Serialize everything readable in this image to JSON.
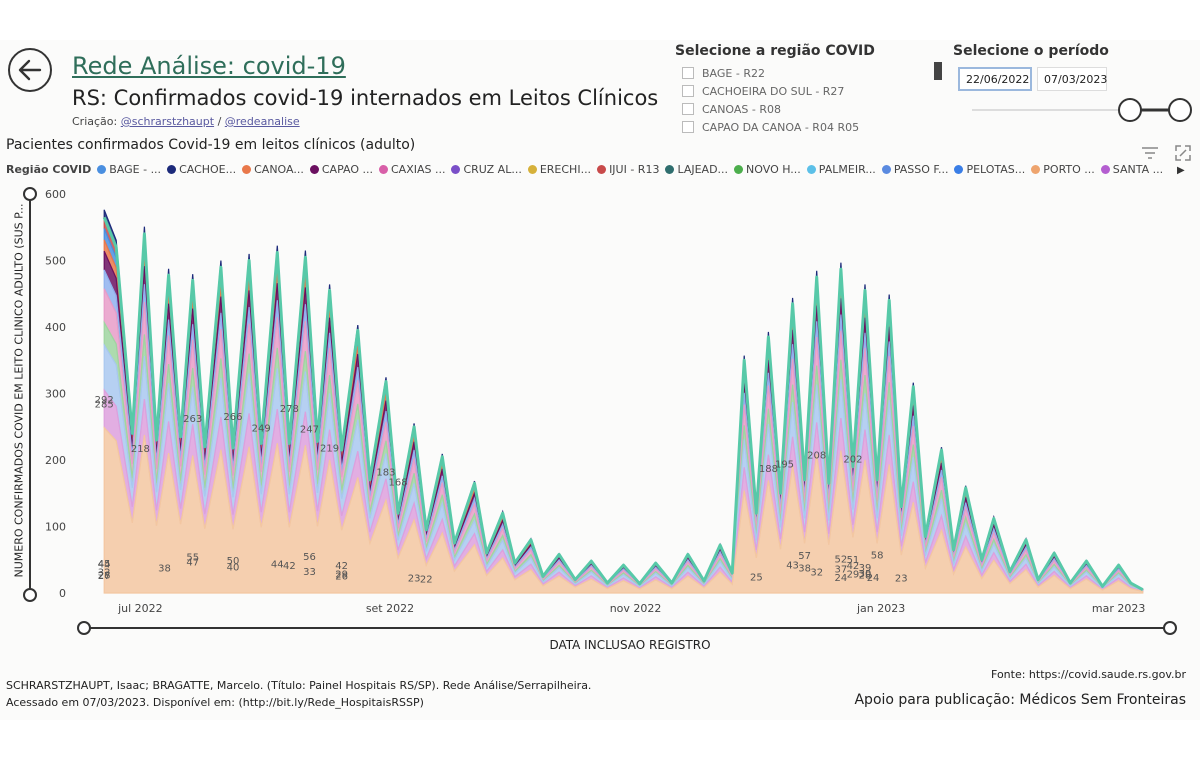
{
  "header": {
    "title": "Rede Análise: covid-19",
    "subtitle": "RS: Confirmados covid-19 internados em Leitos Clínicos",
    "credits_prefix": "Criação: ",
    "credit_1": "@schrarstzhaupt",
    "credits_sep": " / ",
    "credit_2": "@redeanalise"
  },
  "region_filter": {
    "title": "Selecione a região COVID",
    "items": [
      "BAGE - R22",
      "CACHOEIRA DO SUL - R27",
      "CANOAS - R08",
      "CAPAO DA CANOA - R04 R05"
    ]
  },
  "period_filter": {
    "title": "Selecione o período",
    "start": "22/06/2022",
    "end": "07/03/2023"
  },
  "colors": {
    "total_line": "#57c9a8",
    "accent_title": "#2f6e5a"
  },
  "chart_data": {
    "type": "area",
    "title": "Pacientes confirmados Covid-19 em leitos clínicos (adulto)",
    "xlabel": "DATA INCLUSAO REGISTRO",
    "ylabel": "NUMERO CONFIRMADOS COVID EM LEITO CLINICO ADULTO (SUS P...",
    "ylim": [
      0,
      600
    ],
    "yticks": [
      0,
      100,
      200,
      300,
      400,
      500,
      600
    ],
    "xticks": [
      {
        "label": "jul 2022",
        "date": "2022-07-01"
      },
      {
        "label": "set 2022",
        "date": "2022-09-01"
      },
      {
        "label": "nov 2022",
        "date": "2022-11-01"
      },
      {
        "label": "jan 2023",
        "date": "2023-01-01"
      },
      {
        "label": "mar 2023",
        "date": "2023-03-01"
      }
    ],
    "legend_title": "Região COVID",
    "legend": [
      {
        "name": "BAGE - ...",
        "color": "#4a8fe0"
      },
      {
        "name": "CACHOE...",
        "color": "#1c2a7a"
      },
      {
        "name": "CANOA...",
        "color": "#e9784a"
      },
      {
        "name": "CAPAO ...",
        "color": "#6b1060"
      },
      {
        "name": "CAXIAS ...",
        "color": "#d85fa8"
      },
      {
        "name": "CRUZ AL...",
        "color": "#7a4fc8"
      },
      {
        "name": "ERECHI...",
        "color": "#d6b13a"
      },
      {
        "name": "IJUI - R13",
        "color": "#c84a4a"
      },
      {
        "name": "LAJEAD...",
        "color": "#2f6e6e"
      },
      {
        "name": "NOVO H...",
        "color": "#4cae4c"
      },
      {
        "name": "PALMEIR...",
        "color": "#5cc0e8"
      },
      {
        "name": "PASSO F...",
        "color": "#5a8ae0"
      },
      {
        "name": "PELOTAS...",
        "color": "#3a7ee6"
      },
      {
        "name": "PORTO ...",
        "color": "#eea46e"
      },
      {
        "name": "SANTA ...",
        "color": "#b45ed0"
      }
    ],
    "legend_more": "▶",
    "total_series": {
      "name": "total",
      "points": [
        [
          "2022-06-22",
          565
        ],
        [
          "2022-06-25",
          520
        ],
        [
          "2022-06-29",
          240
        ],
        [
          "2022-07-02",
          540
        ],
        [
          "2022-07-05",
          230
        ],
        [
          "2022-07-08",
          478
        ],
        [
          "2022-07-11",
          235
        ],
        [
          "2022-07-14",
          470
        ],
        [
          "2022-07-17",
          220
        ],
        [
          "2022-07-21",
          490
        ],
        [
          "2022-07-24",
          218
        ],
        [
          "2022-07-28",
          500
        ],
        [
          "2022-07-31",
          225
        ],
        [
          "2022-08-04",
          512
        ],
        [
          "2022-08-07",
          225
        ],
        [
          "2022-08-11",
          505
        ],
        [
          "2022-08-14",
          228
        ],
        [
          "2022-08-17",
          455
        ],
        [
          "2022-08-20",
          215
        ],
        [
          "2022-08-24",
          395
        ],
        [
          "2022-08-27",
          170
        ],
        [
          "2022-08-31",
          318
        ],
        [
          "2022-09-03",
          120
        ],
        [
          "2022-09-07",
          250
        ],
        [
          "2022-09-10",
          95
        ],
        [
          "2022-09-14",
          205
        ],
        [
          "2022-09-17",
          75
        ],
        [
          "2022-09-22",
          165
        ],
        [
          "2022-09-25",
          60
        ],
        [
          "2022-09-29",
          120
        ],
        [
          "2022-10-02",
          45
        ],
        [
          "2022-10-06",
          80
        ],
        [
          "2022-10-09",
          25
        ],
        [
          "2022-10-13",
          58
        ],
        [
          "2022-10-17",
          20
        ],
        [
          "2022-10-21",
          48
        ],
        [
          "2022-10-25",
          15
        ],
        [
          "2022-10-29",
          42
        ],
        [
          "2022-11-02",
          14
        ],
        [
          "2022-11-06",
          45
        ],
        [
          "2022-11-10",
          15
        ],
        [
          "2022-11-14",
          58
        ],
        [
          "2022-11-18",
          18
        ],
        [
          "2022-11-22",
          72
        ],
        [
          "2022-11-25",
          30
        ],
        [
          "2022-11-28",
          350
        ],
        [
          "2022-12-01",
          120
        ],
        [
          "2022-12-04",
          385
        ],
        [
          "2022-12-07",
          150
        ],
        [
          "2022-12-10",
          435
        ],
        [
          "2022-12-13",
          170
        ],
        [
          "2022-12-16",
          475
        ],
        [
          "2022-12-19",
          165
        ],
        [
          "2022-12-22",
          487
        ],
        [
          "2022-12-25",
          190
        ],
        [
          "2022-12-28",
          455
        ],
        [
          "2022-12-31",
          170
        ],
        [
          "2023-01-03",
          440
        ],
        [
          "2023-01-06",
          130
        ],
        [
          "2023-01-09",
          310
        ],
        [
          "2023-01-12",
          85
        ],
        [
          "2023-01-16",
          215
        ],
        [
          "2023-01-19",
          65
        ],
        [
          "2023-01-22",
          158
        ],
        [
          "2023-01-26",
          50
        ],
        [
          "2023-01-29",
          112
        ],
        [
          "2023-02-02",
          32
        ],
        [
          "2023-02-06",
          80
        ],
        [
          "2023-02-09",
          20
        ],
        [
          "2023-02-13",
          60
        ],
        [
          "2023-02-17",
          15
        ],
        [
          "2023-02-21",
          48
        ],
        [
          "2023-02-25",
          10
        ],
        [
          "2023-03-01",
          42
        ],
        [
          "2023-03-04",
          15
        ],
        [
          "2023-03-07",
          5
        ]
      ]
    },
    "region_share": [
      {
        "name": "PORTO ...",
        "color": "#f3c7a1",
        "share": 0.44
      },
      {
        "name": "SANTA ...",
        "color": "#dda0dd",
        "share": 0.1
      },
      {
        "name": "PELOTAS...",
        "color": "#a9c8f0",
        "share": 0.12
      },
      {
        "name": "NOVO H...",
        "color": "#9fd5a0",
        "share": 0.06
      },
      {
        "name": "CAXIAS ...",
        "color": "#e79cc8",
        "share": 0.09
      },
      {
        "name": "PASSO F...",
        "color": "#8fb1ee",
        "share": 0.05
      },
      {
        "name": "CAPAO ...",
        "color": "#6b1060",
        "share": 0.05
      },
      {
        "name": "CANOA...",
        "color": "#e9784a",
        "share": 0.03
      },
      {
        "name": "BAGE - ...",
        "color": "#4a8fe0",
        "share": 0.03
      },
      {
        "name": "IJUI - R13",
        "color": "#c84a4a",
        "share": 0.03
      },
      {
        "name": "CACHOE...",
        "color": "#1c2a7a",
        "share": 0.02
      }
    ],
    "data_labels": [
      {
        "date": "2022-06-22",
        "value": 285,
        "text": "285"
      },
      {
        "date": "2022-06-22",
        "value": 292,
        "text": "292"
      },
      {
        "date": "2022-07-01",
        "value": 218,
        "text": "218"
      },
      {
        "date": "2022-07-14",
        "value": 263,
        "text": "263"
      },
      {
        "date": "2022-07-24",
        "value": 266,
        "text": "266"
      },
      {
        "date": "2022-07-31",
        "value": 249,
        "text": "249"
      },
      {
        "date": "2022-08-07",
        "value": 278,
        "text": "278"
      },
      {
        "date": "2022-08-12",
        "value": 247,
        "text": "247"
      },
      {
        "date": "2022-08-20",
        "value": 26,
        "text": "26"
      },
      {
        "date": "2022-08-17",
        "value": 219,
        "text": "219"
      },
      {
        "date": "2022-09-03",
        "value": 168,
        "text": "168"
      },
      {
        "date": "2022-08-31",
        "value": 183,
        "text": "183"
      },
      {
        "date": "2022-12-04",
        "value": 188,
        "text": "188"
      },
      {
        "date": "2022-12-08",
        "value": 195,
        "text": "195"
      },
      {
        "date": "2022-12-16",
        "value": 208,
        "text": "208"
      },
      {
        "date": "2022-12-25",
        "value": 202,
        "text": "202"
      },
      {
        "date": "2022-12-30",
        "value": 24,
        "text": "24"
      },
      {
        "date": "2022-06-22",
        "value": 45,
        "text": "45"
      },
      {
        "date": "2022-06-22",
        "value": 27,
        "text": "27"
      },
      {
        "date": "2022-06-22",
        "value": 28,
        "text": "28"
      },
      {
        "date": "2022-06-22",
        "value": 44,
        "text": "44"
      },
      {
        "date": "2022-06-22",
        "value": 32,
        "text": "32"
      },
      {
        "date": "2022-07-14",
        "value": 55,
        "text": "55"
      },
      {
        "date": "2022-07-07",
        "value": 38,
        "text": "38"
      },
      {
        "date": "2022-07-14",
        "value": 47,
        "text": "47"
      },
      {
        "date": "2022-07-24",
        "value": 50,
        "text": "50"
      },
      {
        "date": "2022-07-24",
        "value": 40,
        "text": "40"
      },
      {
        "date": "2022-08-07",
        "value": 42,
        "text": "42"
      },
      {
        "date": "2022-08-12",
        "value": 56,
        "text": "56"
      },
      {
        "date": "2022-08-04",
        "value": 44,
        "text": "44"
      },
      {
        "date": "2022-08-20",
        "value": 42,
        "text": "42"
      },
      {
        "date": "2022-08-12",
        "value": 33,
        "text": "33"
      },
      {
        "date": "2022-08-20",
        "value": 29,
        "text": "29"
      },
      {
        "date": "2022-09-07",
        "value": 23,
        "text": "23"
      },
      {
        "date": "2022-09-10",
        "value": 22,
        "text": "22"
      },
      {
        "date": "2022-12-13",
        "value": 38,
        "text": "38"
      },
      {
        "date": "2022-12-16",
        "value": 32,
        "text": "32"
      },
      {
        "date": "2022-12-22",
        "value": 52,
        "text": "52"
      },
      {
        "date": "2022-12-25",
        "value": 42,
        "text": "42"
      },
      {
        "date": "2022-12-22",
        "value": 37,
        "text": "37"
      },
      {
        "date": "2022-12-25",
        "value": 29,
        "text": "29"
      },
      {
        "date": "2022-12-28",
        "value": 28,
        "text": "28"
      },
      {
        "date": "2022-12-22",
        "value": 24,
        "text": "24"
      },
      {
        "date": "2022-12-10",
        "value": 43,
        "text": "43"
      },
      {
        "date": "2022-12-13",
        "value": 57,
        "text": "57"
      },
      {
        "date": "2022-12-25",
        "value": 51,
        "text": "51"
      },
      {
        "date": "2022-12-28",
        "value": 39,
        "text": "39"
      },
      {
        "date": "2022-12-31",
        "value": 58,
        "text": "58"
      },
      {
        "date": "2022-12-28",
        "value": 30,
        "text": "30"
      },
      {
        "date": "2022-12-01",
        "value": 25,
        "text": "25"
      },
      {
        "date": "2023-01-06",
        "value": 23,
        "text": "23"
      }
    ],
    "grid": false,
    "legend_placement": "top"
  },
  "footer": {
    "citation_line1": "SCHRARSTZHAUPT, Isaac; BRAGATTE, Marcelo. (Título: Painel Hospitais RS/SP). Rede Análise/Serrapilheira.",
    "citation_line2": "Acessado em 07/03/2023. Disponível em: (http://bit.ly/Rede_HospitaisRSSP)",
    "fonte": "Fonte: https://covid.saude.rs.gov.br",
    "apoio": "Apoio para publicação: Médicos Sem Fronteiras"
  }
}
